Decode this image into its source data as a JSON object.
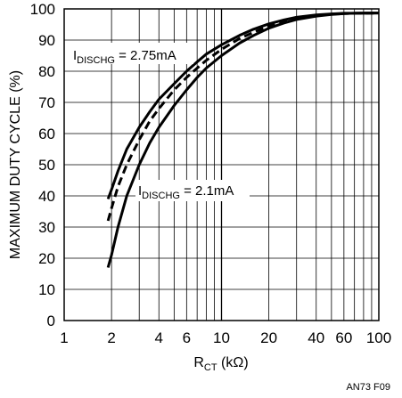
{
  "chart_data": {
    "type": "line",
    "title": "",
    "ylabel": "MAXIMUM DUTY CYCLE (%)",
    "xlabel_main": "R",
    "xlabel_sub": "CT",
    "xlabel_unit": " (kΩ)",
    "xscale": "log",
    "xlim": [
      1,
      100
    ],
    "ylim": [
      0,
      100
    ],
    "grid": true,
    "x_ticks": [
      1,
      2,
      4,
      6,
      10,
      20,
      40,
      60,
      100
    ],
    "x_tick_labels": [
      "1",
      "2",
      "4",
      "6",
      "10",
      "20",
      "40",
      "60",
      "100"
    ],
    "y_ticks": [
      0,
      10,
      20,
      30,
      40,
      50,
      60,
      70,
      80,
      90,
      100
    ],
    "y_tick_labels": [
      "0",
      "10",
      "20",
      "30",
      "40",
      "50",
      "60",
      "70",
      "80",
      "90",
      "100"
    ],
    "series": [
      {
        "style": "solid",
        "x": [
          1.9,
          2.0,
          2.2,
          2.5,
          3.0,
          3.5,
          4.0,
          5.0,
          6.0,
          7.0,
          8.0,
          10,
          13,
          16,
          20,
          25,
          30,
          40,
          50,
          60,
          70,
          80,
          100
        ],
        "y": [
          39,
          42,
          48,
          55,
          62,
          67,
          71,
          76,
          80,
          83,
          85.5,
          88.5,
          91.5,
          93.5,
          95.2,
          96.5,
          97.3,
          98.1,
          98.4,
          98.6,
          98.6,
          98.7,
          98.7
        ]
      },
      {
        "style": "dashed",
        "x": [
          1.9,
          2.0,
          2.2,
          2.5,
          3.0,
          3.5,
          4.0,
          5.0,
          6.0,
          7.0,
          8.0,
          10,
          13,
          16,
          20,
          25,
          30,
          40,
          50,
          60,
          70,
          80,
          100
        ],
        "y": [
          32,
          36,
          43,
          50,
          58,
          64,
          68,
          74,
          78,
          81,
          83.5,
          87,
          90.5,
          92.5,
          94.5,
          96,
          97,
          97.9,
          98.3,
          98.5,
          98.6,
          98.6,
          98.7
        ]
      },
      {
        "style": "solid",
        "x": [
          1.9,
          2.0,
          2.2,
          2.5,
          3.0,
          3.5,
          4.0,
          5.0,
          6.0,
          7.0,
          8.0,
          10,
          13,
          16,
          20,
          25,
          30,
          40,
          50,
          60,
          70,
          80,
          100
        ],
        "y": [
          17,
          21,
          30,
          40,
          50,
          57,
          62,
          69,
          74,
          78,
          81,
          85,
          89,
          91.5,
          93.8,
          95.5,
          96.6,
          97.7,
          98.2,
          98.5,
          98.6,
          98.6,
          98.7
        ]
      }
    ],
    "annotations": [
      {
        "text_main": "I",
        "text_sub": "DISCHG",
        "text_rest": " = 2.75mA"
      },
      {
        "text_main": "I",
        "text_sub": "DISCHG",
        "text_rest": " = 2.1mA"
      }
    ]
  },
  "figure_id": "AN73 F09"
}
